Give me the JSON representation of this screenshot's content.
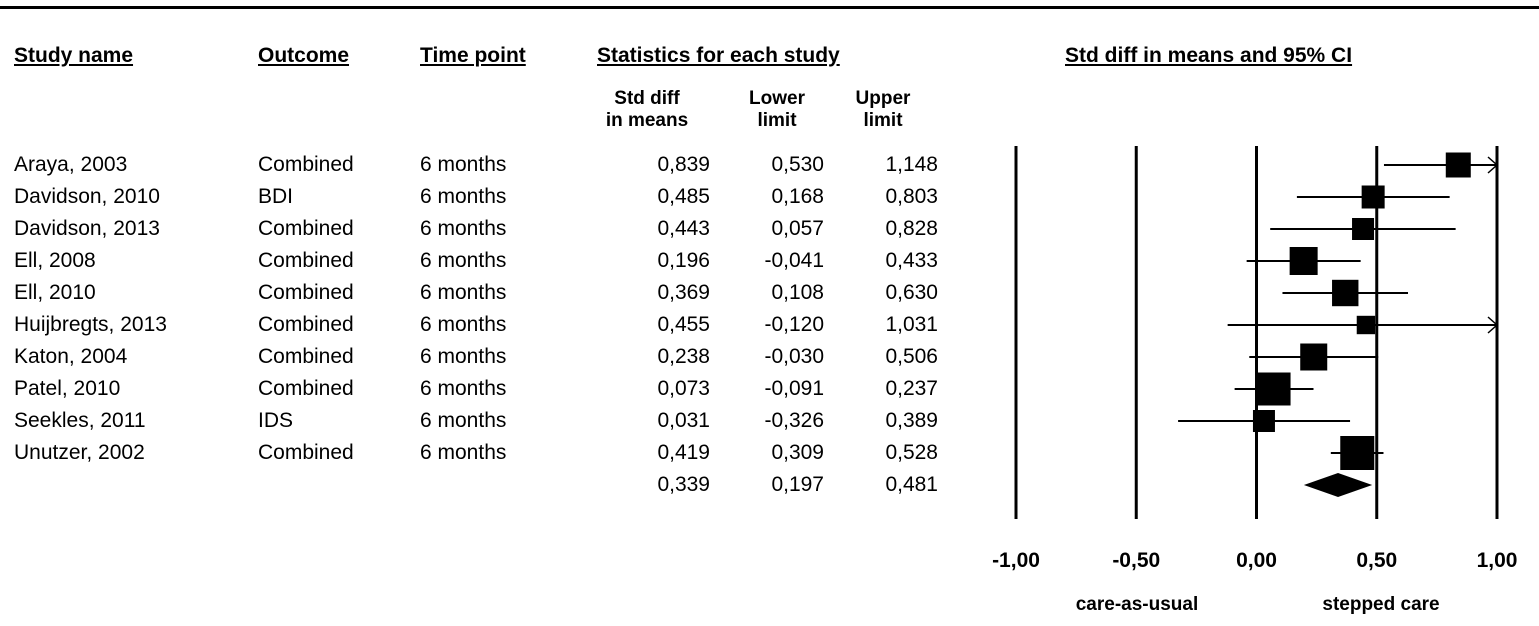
{
  "headers": {
    "study": "Study name",
    "outcome": "Outcome",
    "time": "Time point",
    "stats": "Statistics for each study",
    "ci": "Std diff in means and 95% CI"
  },
  "subheaders": {
    "sd_line1": "Std diff",
    "sd_line2": "in means",
    "lower_line1": "Lower",
    "lower_line2": "limit",
    "upper_line1": "Upper",
    "upper_line2": "limit"
  },
  "rows": [
    {
      "study": "Araya, 2003",
      "outcome": "Combined",
      "time": "6 months",
      "sd": "0,839",
      "lower": "0,530",
      "upper": "1,148"
    },
    {
      "study": "Davidson, 2010",
      "outcome": "BDI",
      "time": "6 months",
      "sd": "0,485",
      "lower": "0,168",
      "upper": "0,803"
    },
    {
      "study": "Davidson, 2013",
      "outcome": "Combined",
      "time": "6 months",
      "sd": "0,443",
      "lower": "0,057",
      "upper": "0,828"
    },
    {
      "study": "Ell, 2008",
      "outcome": "Combined",
      "time": "6 months",
      "sd": "0,196",
      "lower": "-0,041",
      "upper": "0,433"
    },
    {
      "study": "Ell, 2010",
      "outcome": "Combined",
      "time": "6 months",
      "sd": "0,369",
      "lower": "0,108",
      "upper": "0,630"
    },
    {
      "study": "Huijbregts, 2013",
      "outcome": "Combined",
      "time": "6 months",
      "sd": "0,455",
      "lower": "-0,120",
      "upper": "1,031"
    },
    {
      "study": "Katon, 2004",
      "outcome": "Combined",
      "time": "6 months",
      "sd": "0,238",
      "lower": "-0,030",
      "upper": "0,506"
    },
    {
      "study": "Patel, 2010",
      "outcome": "Combined",
      "time": "6 months",
      "sd": "0,073",
      "lower": "-0,091",
      "upper": "0,237"
    },
    {
      "study": "Seekles, 2011",
      "outcome": "IDS",
      "time": "6 months",
      "sd": "0,031",
      "lower": "-0,326",
      "upper": "0,389"
    },
    {
      "study": "Unutzer, 2002",
      "outcome": "Combined",
      "time": "6 months",
      "sd": "0,419",
      "lower": "0,309",
      "upper": "0,528"
    }
  ],
  "summary": {
    "sd": "0,339",
    "lower": "0,197",
    "upper": "0,481"
  },
  "chart_data": {
    "type": "forest",
    "title": "Std diff in means and 95% CI",
    "xlim": [
      -1,
      1
    ],
    "ticks": [
      -1,
      -0.5,
      0,
      0.5,
      1
    ],
    "tick_labels": [
      "-1,00",
      "-0,50",
      "0,00",
      "0,50",
      "1,00"
    ],
    "left_label": "care-as-usual",
    "right_label": "stepped care",
    "studies": [
      {
        "name": "Araya, 2003",
        "estimate": 0.839,
        "lower": 0.53,
        "upper": 1.148,
        "weight": 0.55
      },
      {
        "name": "Davidson, 2010",
        "estimate": 0.485,
        "lower": 0.168,
        "upper": 0.803,
        "weight": 0.45
      },
      {
        "name": "Davidson, 2013",
        "estimate": 0.443,
        "lower": 0.057,
        "upper": 0.828,
        "weight": 0.4
      },
      {
        "name": "Ell, 2008",
        "estimate": 0.196,
        "lower": -0.041,
        "upper": 0.433,
        "weight": 0.7
      },
      {
        "name": "Ell, 2010",
        "estimate": 0.369,
        "lower": 0.108,
        "upper": 0.63,
        "weight": 0.62
      },
      {
        "name": "Huijbregts, 2013",
        "estimate": 0.455,
        "lower": -0.12,
        "upper": 1.031,
        "weight": 0.22
      },
      {
        "name": "Katon, 2004",
        "estimate": 0.238,
        "lower": -0.03,
        "upper": 0.506,
        "weight": 0.65
      },
      {
        "name": "Patel, 2010",
        "estimate": 0.073,
        "lower": -0.091,
        "upper": 0.237,
        "weight": 0.95
      },
      {
        "name": "Seekles, 2011",
        "estimate": 0.031,
        "lower": -0.326,
        "upper": 0.389,
        "weight": 0.4
      },
      {
        "name": "Unutzer, 2002",
        "estimate": 0.419,
        "lower": 0.309,
        "upper": 0.528,
        "weight": 1.0
      }
    ],
    "summary": {
      "estimate": 0.339,
      "lower": 0.197,
      "upper": 0.481
    }
  }
}
